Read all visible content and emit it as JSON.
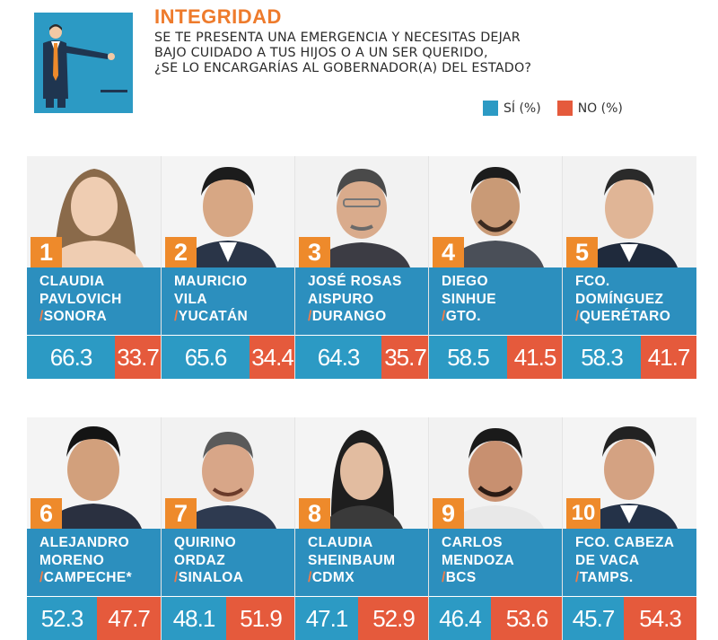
{
  "header": {
    "title": "INTEGRIDAD",
    "question_lines": [
      "SE TE PRESENTA UNA EMERGENCIA Y NECESITAS DEJAR",
      "BAJO CUIDADO A TUS HIJOS O A UN SER QUERIDO,",
      "¿SE LO ENCARGARÍAS AL GOBERNADOR(A) DEL ESTADO?"
    ],
    "legend": [
      {
        "label": "SÍ (%)",
        "color": "#2c9ac4"
      },
      {
        "label": "NO (%)",
        "color": "#e55a3c"
      }
    ]
  },
  "colors": {
    "accent_orange": "#ee8a2b",
    "name_blue": "#2c8fbe",
    "yes_blue": "#2c9ac4",
    "no_red": "#e55a3c"
  },
  "governors": [
    {
      "rank": "1",
      "name_lines": [
        "CLAUDIA",
        "PAVLOVICH"
      ],
      "state": "SONORA",
      "yes": "66.3",
      "no": "33.7"
    },
    {
      "rank": "2",
      "name_lines": [
        "MAURICIO",
        "VILA"
      ],
      "state": "YUCATÁN",
      "yes": "65.6",
      "no": "34.4"
    },
    {
      "rank": "3",
      "name_lines": [
        "JOSÉ ROSAS",
        "AISPURO"
      ],
      "state": "DURANGO",
      "yes": "64.3",
      "no": "35.7"
    },
    {
      "rank": "4",
      "name_lines": [
        "DIEGO",
        "SINHUE"
      ],
      "state": "GTO.",
      "yes": "58.5",
      "no": "41.5"
    },
    {
      "rank": "5",
      "name_lines": [
        "FCO.",
        "DOMÍNGUEZ"
      ],
      "state": "QUERÉTARO",
      "yes": "58.3",
      "no": "41.7"
    },
    {
      "rank": "6",
      "name_lines": [
        "ALEJANDRO",
        "MORENO"
      ],
      "state": "CAMPECHE*",
      "yes": "52.3",
      "no": "47.7"
    },
    {
      "rank": "7",
      "name_lines": [
        "QUIRINO",
        "ORDAZ"
      ],
      "state": "SINALOA",
      "yes": "48.1",
      "no": "51.9"
    },
    {
      "rank": "8",
      "name_lines": [
        "CLAUDIA",
        "SHEINBAUM"
      ],
      "state": "CDMX",
      "yes": "47.1",
      "no": "52.9"
    },
    {
      "rank": "9",
      "name_lines": [
        "CARLOS",
        "MENDOZA"
      ],
      "state": "BCS",
      "yes": "46.4",
      "no": "53.6"
    },
    {
      "rank": "10",
      "name_lines": [
        "FCO. CABEZA",
        "DE VACA"
      ],
      "state": "TAMPS.",
      "yes": "45.7",
      "no": "54.3"
    }
  ]
}
